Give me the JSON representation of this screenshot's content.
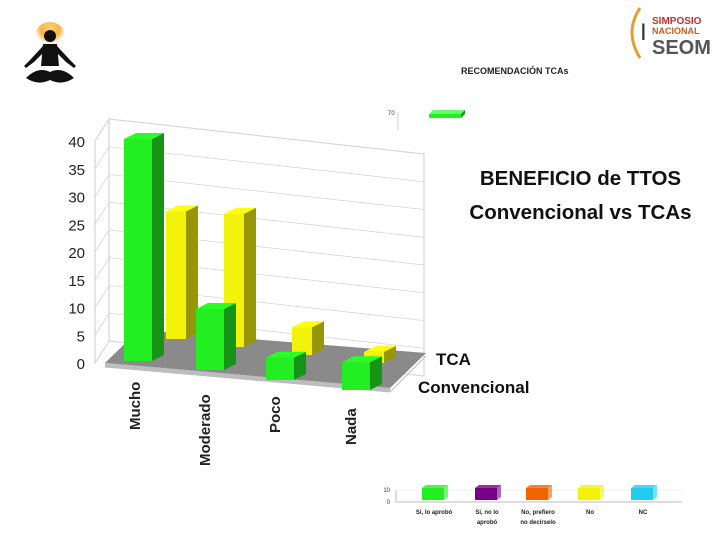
{
  "rec_title": "RECOMENDACIÓN TCAs",
  "title_line1": "BENEFICIO de TTOS",
  "title_line2": "Convencional vs TCAs",
  "logo_right": {
    "top": "SIMPOSIO",
    "mid": "NACIONAL",
    "bottom": "SEOM",
    "initial": "I"
  },
  "icons": {
    "left_logo": "meditation-silhouette-icon",
    "right_logo": "seom-logo-icon"
  },
  "colors": {
    "convencional": "#22ee22",
    "tca": "#f2f20a",
    "floor": "#8a8a8a",
    "purple": "#770088",
    "orange": "#ee6600",
    "cyan": "#22ccee"
  },
  "top_mini_tick": "70",
  "chart_data": {
    "type": "bar",
    "categories": [
      "Mucho",
      "Moderado",
      "Poco",
      "Nada"
    ],
    "series": [
      {
        "name": "TCA",
        "values": [
          23,
          24,
          5,
          2
        ]
      },
      {
        "name": "Convencional",
        "values": [
          40,
          11,
          4,
          5
        ]
      }
    ],
    "ylim": [
      0,
      40
    ],
    "yticks": [
      "40",
      "35",
      "30",
      "25",
      "20",
      "15",
      "10",
      "5",
      "0"
    ],
    "legend": [
      "TCA",
      "Convencional"
    ],
    "legend_position": "right"
  },
  "mini_chart": {
    "type": "bar",
    "categories": [
      "Si, lo aprobó",
      "Si, no lo aprobó",
      "No, prefiero no decírselo",
      "No",
      "NC"
    ],
    "yticks": [
      "10",
      "0"
    ]
  }
}
